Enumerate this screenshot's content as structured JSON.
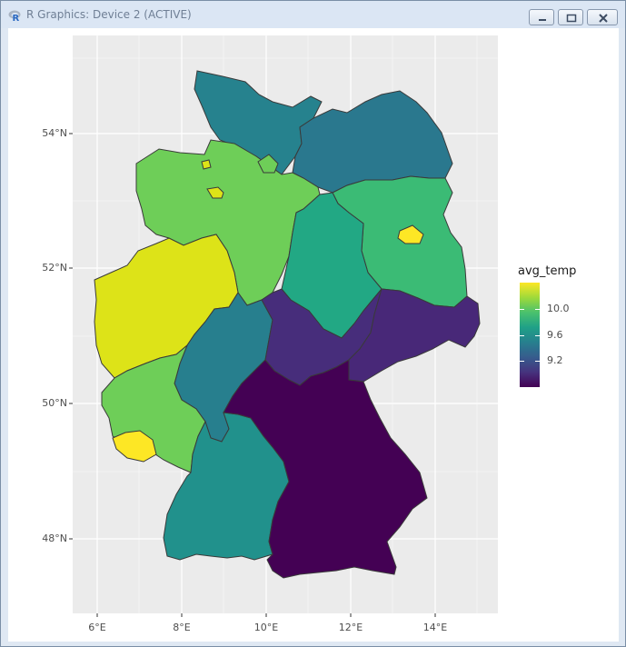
{
  "window": {
    "title": "R Graphics: Device 2 (ACTIVE)"
  },
  "controls": {
    "minimize_icon": "minimize-icon",
    "restore_icon": "restore-icon",
    "close_icon": "close-icon"
  },
  "plot": {
    "y_ticks": [
      "54°N",
      "52°N",
      "50°N",
      "48°N"
    ],
    "x_ticks": [
      "6°E",
      "8°E",
      "10°E",
      "12°E",
      "14°E"
    ],
    "legend": {
      "title": "avg_temp",
      "labels": [
        "10.0",
        "9.6",
        "9.2"
      ]
    }
  },
  "colors": {
    "panel": "#ebebeb",
    "grid": "#ffffff",
    "border": "#333333"
  }
}
